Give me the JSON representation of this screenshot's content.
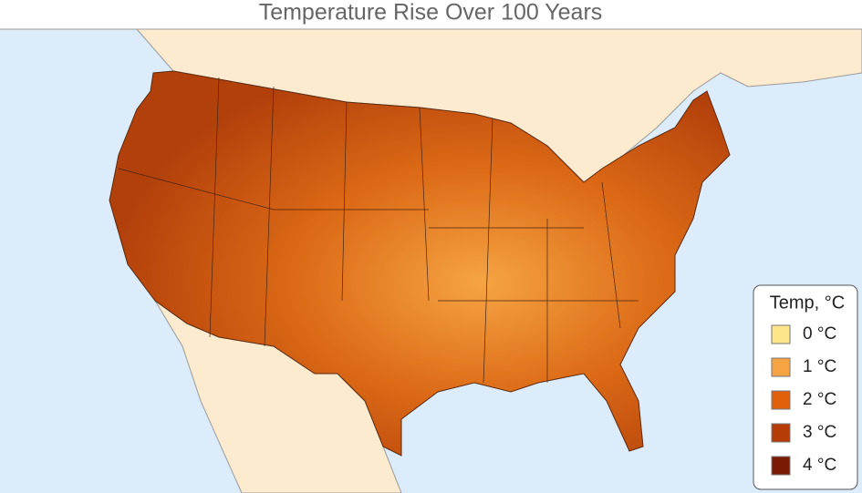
{
  "title": "Temperature Rise Over 100 Years",
  "legend": {
    "title": "Temp, °C",
    "items": [
      {
        "label": "0 °C",
        "color": "#fde68a"
      },
      {
        "label": "1 °C",
        "color": "#f6a443"
      },
      {
        "label": "2 °C",
        "color": "#e0600b"
      },
      {
        "label": "3 °C",
        "color": "#b53b07"
      },
      {
        "label": "4 °C",
        "color": "#7a1904"
      }
    ]
  }
}
